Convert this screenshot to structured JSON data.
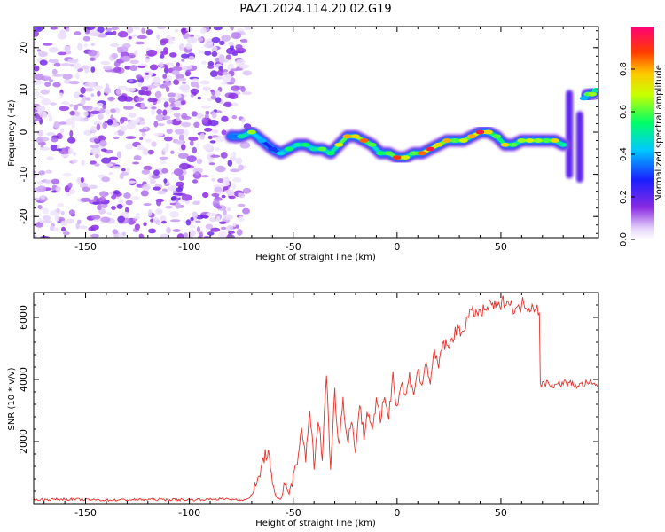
{
  "title": "PAZ1.2024.114.20.02.G19",
  "colors": {
    "snr_line": "#e8302a",
    "spectrum_low": "#8a2be2",
    "spectrum_mid": "#00c8ff",
    "spectrum_high": "#e8005a"
  },
  "colorbar": {
    "label": "Normalized spectral amplitude",
    "colormap": "rainbow",
    "range": [
      0,
      1
    ],
    "ticks": [
      "0.0",
      "0.2",
      "0.4",
      "0.6",
      "0.8"
    ]
  },
  "chart_data": [
    {
      "type": "heatmap",
      "name": "spectrogram",
      "xlabel": "Height of straight line (km)",
      "ylabel": "Frequency (Hz)",
      "xlim": [
        -175,
        97
      ],
      "ylim": [
        -25,
        25
      ],
      "xticks": [
        "-150",
        "-100",
        "-50",
        "0",
        "50"
      ],
      "yticks": [
        "20",
        "10",
        "0",
        "-10",
        "-20"
      ],
      "noise_region_x": [
        -175,
        -72
      ],
      "ridge": {
        "x": [
          -80,
          -75,
          -70,
          -65,
          -60,
          -56,
          -52,
          -48,
          -44,
          -40,
          -36,
          -32,
          -28,
          -24,
          -20,
          -16,
          -12,
          -8,
          -4,
          0,
          4,
          8,
          12,
          16,
          20,
          24,
          28,
          32,
          36,
          40,
          44,
          48,
          52,
          56,
          60,
          64,
          68,
          72,
          76,
          80
        ],
        "y": [
          -1,
          -1,
          0,
          -2,
          -4,
          -5,
          -4,
          -3,
          -3,
          -4,
          -4,
          -5,
          -3,
          -1,
          -1,
          -2,
          -3,
          -5,
          -5,
          -6,
          -6,
          -5,
          -5,
          -4,
          -3,
          -2,
          -2,
          -2,
          -1,
          0,
          0,
          -1,
          -3,
          -3,
          -2,
          -2,
          -2,
          -2,
          -2,
          -3
        ],
        "amp": [
          0.35,
          0.5,
          0.65,
          0.4,
          0.3,
          0.45,
          0.55,
          0.5,
          0.55,
          0.5,
          0.6,
          0.55,
          0.7,
          0.8,
          0.75,
          0.85,
          0.6,
          0.55,
          0.6,
          0.9,
          0.7,
          0.6,
          0.85,
          0.95,
          0.75,
          0.8,
          0.6,
          0.7,
          0.8,
          0.95,
          0.75,
          0.6,
          0.75,
          0.6,
          0.65,
          0.7,
          0.65,
          0.6,
          0.75,
          0.5
        ]
      },
      "late_segment": {
        "x": [
          90,
          92,
          94,
          96
        ],
        "y": [
          8,
          9,
          9,
          10
        ],
        "amp": [
          0.4,
          0.6,
          0.65,
          0.5
        ]
      },
      "vertical_streaks": [
        {
          "x": 83,
          "y_range": [
            -11,
            10
          ],
          "amp": 0.2
        },
        {
          "x": 88,
          "y_range": [
            -12,
            5
          ],
          "amp": 0.2
        }
      ]
    },
    {
      "type": "line",
      "name": "snr",
      "xlabel": "Height of straight line (km)",
      "ylabel": "SNR (10 * v/v)",
      "xlim": [
        -175,
        97
      ],
      "ylim": [
        0,
        6800
      ],
      "xticks": [
        "-150",
        "-100",
        "-50",
        "0",
        "50"
      ],
      "yticks": [
        "6000",
        "4000",
        "2000"
      ],
      "series": [
        {
          "x": [
            -175,
            -160,
            -140,
            -120,
            -100,
            -85,
            -72,
            -68,
            -64,
            -62,
            -60,
            -58,
            -56,
            -54,
            -52,
            -50,
            -48,
            -46,
            -44,
            -42,
            -40,
            -38,
            -36,
            -34,
            -32,
            -30,
            -28,
            -26,
            -24,
            -22,
            -20,
            -18,
            -16,
            -14,
            -12,
            -10,
            -8,
            -6,
            -4,
            -2,
            0,
            2,
            4,
            6,
            8,
            10,
            12,
            14,
            16,
            18,
            20,
            22,
            25,
            28,
            31,
            34,
            37,
            40,
            43,
            46,
            49,
            52,
            55,
            58,
            61,
            64,
            67,
            68.5,
            69,
            72,
            76,
            80,
            84,
            88,
            92,
            97
          ],
          "y": [
            120,
            140,
            110,
            130,
            120,
            150,
            120,
            500,
            1500,
            1700,
            500,
            200,
            150,
            600,
            300,
            900,
            1200,
            2400,
            1500,
            3100,
            1200,
            2600,
            1600,
            4200,
            1100,
            3600,
            1900,
            3400,
            2000,
            2600,
            1800,
            3200,
            2200,
            3000,
            2400,
            3300,
            2600,
            3500,
            2800,
            4200,
            3100,
            3900,
            3400,
            4100,
            3600,
            4300,
            3800,
            4500,
            4000,
            4800,
            4400,
            5200,
            5000,
            5600,
            5500,
            6000,
            6200,
            6100,
            6300,
            6400,
            6300,
            6600,
            6400,
            6200,
            6500,
            6300,
            6400,
            6200,
            3800,
            3900,
            3800,
            3900,
            3850,
            3800,
            3900,
            3750
          ]
        }
      ]
    }
  ]
}
